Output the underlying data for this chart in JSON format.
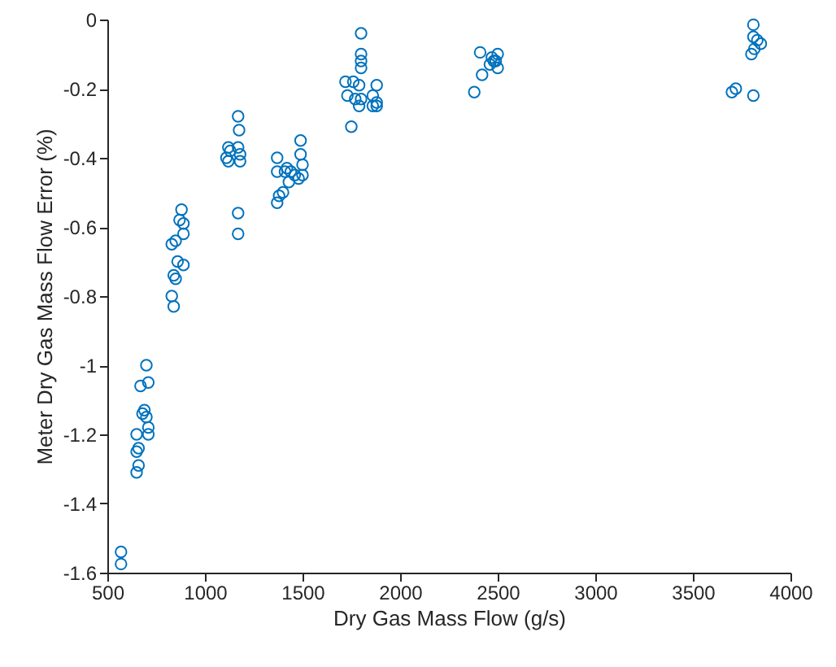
{
  "chart_data": {
    "type": "scatter",
    "xlabel": "Dry Gas Mass Flow (g/s)",
    "ylabel": "Meter Dry Gas Mass Flow Error (%)",
    "xlim": [
      500,
      4000
    ],
    "xticks": [
      500,
      1000,
      1500,
      2000,
      2500,
      3000,
      3500,
      4000
    ],
    "ylim": [
      -1.6,
      0
    ],
    "yticks": [
      -1.6,
      -1.4,
      -1.2,
      -1,
      -0.8,
      -0.6,
      -0.4,
      -0.2,
      0
    ],
    "grid": false,
    "marker": "circle",
    "series": [
      {
        "color": "#0072bd",
        "x": [
          570,
          570,
          700,
          710,
          670,
          690,
          680,
          700,
          710,
          650,
          710,
          660,
          650,
          660,
          650,
          880,
          870,
          890,
          890,
          850,
          830,
          860,
          890,
          840,
          850,
          830,
          840,
          1170,
          1175,
          1120,
          1170,
          1130,
          1180,
          1110,
          1120,
          1180,
          1170,
          1170,
          1490,
          1490,
          1370,
          1500,
          1420,
          1440,
          1370,
          1460,
          1500,
          1480,
          1430,
          1400,
          1380,
          1370,
          1410,
          1800,
          1800,
          1800,
          1800,
          1720,
          1760,
          1790,
          1880,
          1730,
          1770,
          1800,
          1860,
          1880,
          1880,
          1860,
          1750,
          1790,
          2410,
          2500,
          2470,
          2480,
          2460,
          2500,
          2420,
          2380,
          2490,
          3810,
          3810,
          3830,
          3848,
          3815,
          3800,
          3720,
          3700,
          3810
        ],
        "values": [
          -1.54,
          -1.575,
          -1.0,
          -1.05,
          -1.06,
          -1.13,
          -1.14,
          -1.15,
          -1.18,
          -1.2,
          -1.2,
          -1.24,
          -1.25,
          -1.29,
          -1.31,
          -0.55,
          -0.58,
          -0.59,
          -0.62,
          -0.64,
          -0.65,
          -0.7,
          -0.71,
          -0.74,
          -0.75,
          -0.8,
          -0.83,
          -0.28,
          -0.32,
          -0.37,
          -0.37,
          -0.38,
          -0.39,
          -0.4,
          -0.41,
          -0.41,
          -0.56,
          -0.62,
          -0.35,
          -0.39,
          -0.4,
          -0.42,
          -0.43,
          -0.44,
          -0.44,
          -0.45,
          -0.45,
          -0.46,
          -0.47,
          -0.5,
          -0.51,
          -0.53,
          -0.44,
          -0.04,
          -0.1,
          -0.12,
          -0.14,
          -0.18,
          -0.18,
          -0.19,
          -0.19,
          -0.22,
          -0.23,
          -0.23,
          -0.22,
          -0.24,
          -0.25,
          -0.25,
          -0.31,
          -0.25,
          -0.095,
          -0.1,
          -0.11,
          -0.12,
          -0.13,
          -0.14,
          -0.16,
          -0.21,
          -0.12,
          -0.015,
          -0.05,
          -0.06,
          -0.07,
          -0.085,
          -0.1,
          -0.2,
          -0.21,
          -0.22
        ]
      }
    ]
  }
}
